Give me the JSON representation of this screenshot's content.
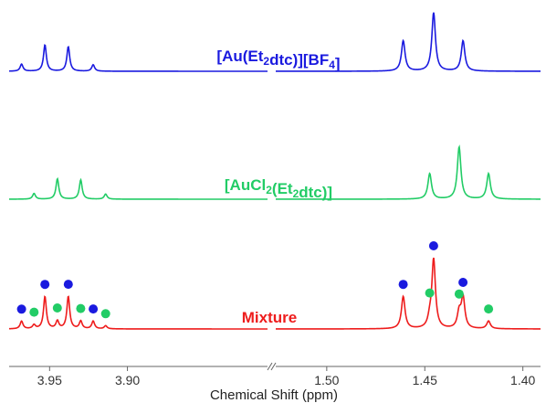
{
  "chart_data": {
    "type": "line",
    "title": "",
    "xlabel": "Chemical Shift (ppm)",
    "ylabel": "",
    "axis_break": true,
    "x_segments": [
      {
        "xlim": [
          3.976,
          3.81
        ],
        "ticks": [
          3.95,
          3.9
        ],
        "tick_labels": [
          "3.95",
          "3.90"
        ]
      },
      {
        "xlim": [
          1.526,
          1.391
        ],
        "ticks": [
          1.5,
          1.45,
          1.4
        ],
        "tick_labels": [
          "1.50",
          "1.45",
          "1.40"
        ]
      }
    ],
    "series": [
      {
        "name": "[Au(Et₂dtc)][BF₄]",
        "label_parts": [
          {
            "t": "[Au(Et",
            "sub": false
          },
          {
            "t": "2",
            "sub": true
          },
          {
            "t": "dtc)][BF",
            "sub": false
          },
          {
            "t": "4",
            "sub": true
          },
          {
            "t": "]",
            "sub": false
          }
        ],
        "color": "#1a1adf",
        "peaks": [
          {
            "x": 3.968,
            "h": 0.12
          },
          {
            "x": 3.953,
            "h": 0.45
          },
          {
            "x": 3.938,
            "h": 0.42
          },
          {
            "x": 3.922,
            "h": 0.11
          },
          {
            "x": 1.461,
            "h": 0.52
          },
          {
            "x": 1.4455,
            "h": 1.0
          },
          {
            "x": 1.4305,
            "h": 0.52
          }
        ]
      },
      {
        "name": "[AuCl₂(Et₂dtc)]",
        "label_parts": [
          {
            "t": "[AuCl",
            "sub": false
          },
          {
            "t": "2",
            "sub": true
          },
          {
            "t": "(Et",
            "sub": false
          },
          {
            "t": "2",
            "sub": true
          },
          {
            "t": "dtc)]",
            "sub": false
          }
        ],
        "color": "#22cc66",
        "peaks": [
          {
            "x": 3.96,
            "h": 0.1
          },
          {
            "x": 3.945,
            "h": 0.36
          },
          {
            "x": 3.93,
            "h": 0.34
          },
          {
            "x": 3.914,
            "h": 0.09
          },
          {
            "x": 1.4475,
            "h": 0.45
          },
          {
            "x": 1.4325,
            "h": 0.92
          },
          {
            "x": 1.4175,
            "h": 0.45
          }
        ]
      },
      {
        "name": "Mixture",
        "label_parts": [
          {
            "t": "Mixture",
            "sub": false
          }
        ],
        "color": "#ee1c1c",
        "peaks": [
          {
            "x": 3.968,
            "h": 0.1
          },
          {
            "x": 3.96,
            "h": 0.05
          },
          {
            "x": 3.953,
            "h": 0.42
          },
          {
            "x": 3.945,
            "h": 0.1
          },
          {
            "x": 3.938,
            "h": 0.42
          },
          {
            "x": 3.93,
            "h": 0.1
          },
          {
            "x": 3.922,
            "h": 0.1
          },
          {
            "x": 3.914,
            "h": 0.04
          },
          {
            "x": 1.461,
            "h": 0.42
          },
          {
            "x": 1.4475,
            "h": 0.1
          },
          {
            "x": 1.4455,
            "h": 0.9
          },
          {
            "x": 1.4325,
            "h": 0.2
          },
          {
            "x": 1.4305,
            "h": 0.4
          },
          {
            "x": 1.4175,
            "h": 0.1
          }
        ],
        "markers": [
          {
            "x": 3.968,
            "color": "#1a1adf"
          },
          {
            "x": 3.953,
            "color": "#1a1adf"
          },
          {
            "x": 3.938,
            "color": "#1a1adf"
          },
          {
            "x": 3.922,
            "color": "#1a1adf"
          },
          {
            "x": 1.461,
            "color": "#1a1adf"
          },
          {
            "x": 1.4455,
            "color": "#1a1adf"
          },
          {
            "x": 1.4305,
            "color": "#1a1adf"
          },
          {
            "x": 3.96,
            "color": "#22cc66"
          },
          {
            "x": 3.945,
            "color": "#22cc66"
          },
          {
            "x": 3.93,
            "color": "#22cc66"
          },
          {
            "x": 3.914,
            "color": "#22cc66"
          },
          {
            "x": 1.4475,
            "color": "#22cc66"
          },
          {
            "x": 1.4325,
            "color": "#22cc66"
          },
          {
            "x": 1.4175,
            "color": "#22cc66"
          }
        ]
      }
    ],
    "legend": "inline labels over each trace",
    "grid": false
  }
}
